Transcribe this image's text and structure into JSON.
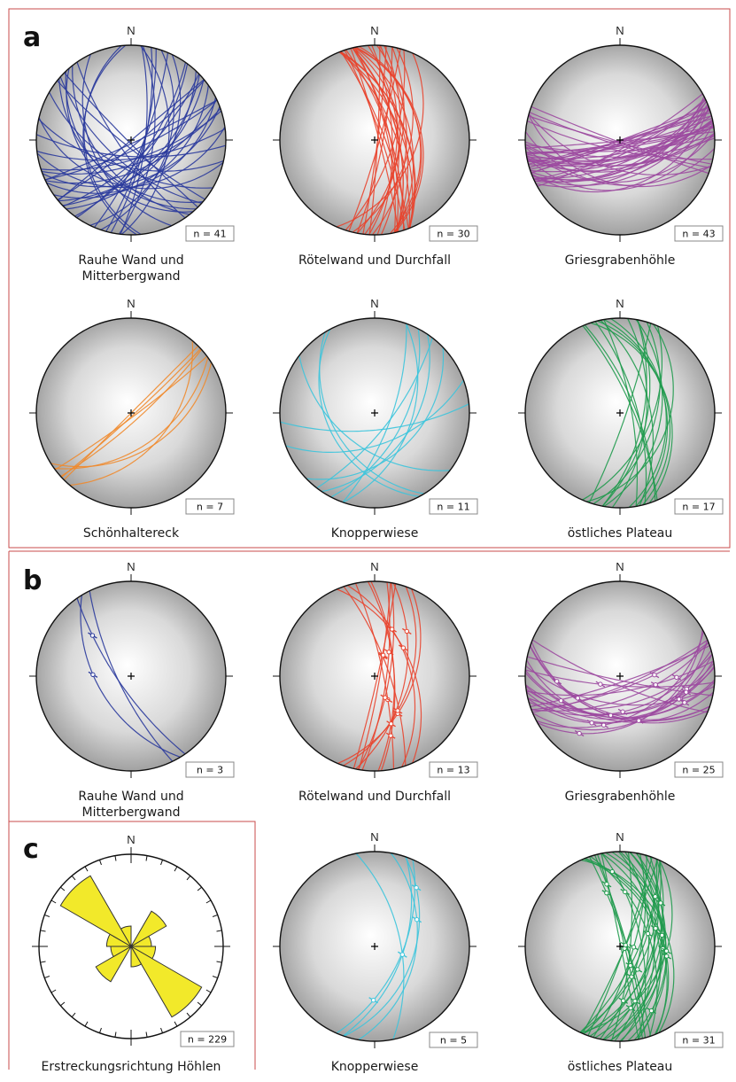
{
  "panels": [
    {
      "letter": "a"
    },
    {
      "letter": "b"
    },
    {
      "letter": "c"
    }
  ],
  "north_label": "N",
  "stereonets": [
    {
      "panel": "a",
      "title": [
        "Rauhe Wand und",
        "Mitterbergwand"
      ],
      "n_label": "n = 41",
      "color": "#2a3a9c",
      "count": 41,
      "seed": 11,
      "bias": "wide",
      "stars": 0
    },
    {
      "panel": "a",
      "title": [
        "Rötelwand und Durchfall"
      ],
      "n_label": "n = 30",
      "color": "#e8442e",
      "count": 30,
      "seed": 23,
      "bias": "ns",
      "stars": 0
    },
    {
      "panel": "a",
      "title": [
        "Griesgrabenhöhle"
      ],
      "n_label": "n = 43",
      "color": "#9c4aa0",
      "count": 43,
      "seed": 37,
      "bias": "ew",
      "stars": 0
    },
    {
      "panel": "a",
      "title": [
        "Schönhaltereck"
      ],
      "n_label": "n = 7",
      "color": "#f08a2c",
      "count": 7,
      "seed": 41,
      "bias": "ne",
      "stars": 0
    },
    {
      "panel": "a",
      "title": [
        "Knopperwiese"
      ],
      "n_label": "n = 11",
      "color": "#3cc4dc",
      "count": 11,
      "seed": 53,
      "bias": "wide",
      "stars": 0
    },
    {
      "panel": "a",
      "title": [
        "östliches Plateau"
      ],
      "n_label": "n = 17",
      "color": "#1f9a4c",
      "count": 17,
      "seed": 67,
      "bias": "ns",
      "stars": 0
    },
    {
      "panel": "b",
      "title": [
        "Rauhe Wand und",
        "Mitterbergwand"
      ],
      "n_label": "n = 3",
      "color": "#2a3a9c",
      "count": 3,
      "seed": 71,
      "bias": "nw",
      "stars": 2
    },
    {
      "panel": "b",
      "title": [
        "Rötelwand und Durchfall"
      ],
      "n_label": "n = 13",
      "color": "#e8442e",
      "count": 13,
      "seed": 83,
      "bias": "ns",
      "stars": 12
    },
    {
      "panel": "b",
      "title": [
        "Griesgrabenhöhle"
      ],
      "n_label": "n = 25",
      "color": "#9c4aa0",
      "count": 25,
      "seed": 97,
      "bias": "ew",
      "stars": 18
    },
    {
      "panel": "b",
      "title": [
        "Knopperwiese"
      ],
      "n_label": "n = 5",
      "color": "#3cc4dc",
      "count": 5,
      "seed": 101,
      "bias": "ns",
      "stars": 4
    },
    {
      "panel": "b",
      "title": [
        "östliches Plateau"
      ],
      "n_label": "n = 31",
      "color": "#1f9a4c",
      "count": 31,
      "seed": 113,
      "bias": "ns",
      "stars": 22
    }
  ],
  "rose": {
    "panel": "c",
    "title": "Erstreckungsrichtung Höhlen",
    "n_label": "n = 229",
    "fill_color": "#f2e92a",
    "sectors": [
      {
        "from_deg": 30,
        "to_deg": 60,
        "value": 0.5
      },
      {
        "from_deg": 60,
        "to_deg": 90,
        "value": 0.25
      },
      {
        "from_deg": 90,
        "to_deg": 120,
        "value": 0.3
      },
      {
        "from_deg": 120,
        "to_deg": 150,
        "value": 1.0
      },
      {
        "from_deg": 150,
        "to_deg": 180,
        "value": 0.25
      },
      {
        "from_deg": 210,
        "to_deg": 240,
        "value": 0.5
      },
      {
        "from_deg": 240,
        "to_deg": 270,
        "value": 0.25
      },
      {
        "from_deg": 270,
        "to_deg": 300,
        "value": 0.3
      },
      {
        "from_deg": 300,
        "to_deg": 330,
        "value": 1.0
      },
      {
        "from_deg": 330,
        "to_deg": 360,
        "value": 0.25
      }
    ]
  }
}
